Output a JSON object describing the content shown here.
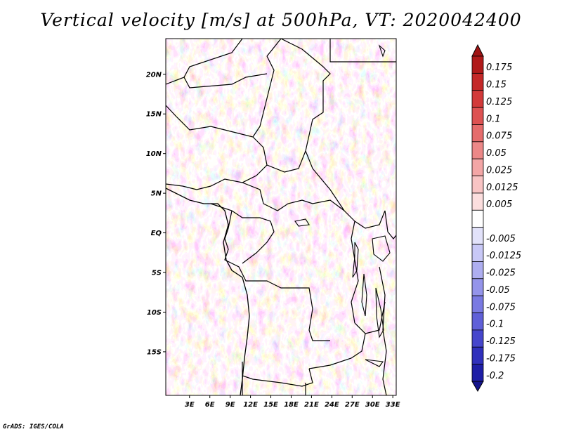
{
  "title": "Vertical velocity [m/s] at 500hPa, VT: 2020042400",
  "credit": "GrADS: IGES/COLA",
  "map": {
    "lat_range": [
      -20.5,
      24.5
    ],
    "lon_range": [
      -0.5,
      33.5
    ],
    "lat_ticks": [
      {
        "value": 20,
        "label": "20N"
      },
      {
        "value": 15,
        "label": "15N"
      },
      {
        "value": 10,
        "label": "10N"
      },
      {
        "value": 5,
        "label": "5N"
      },
      {
        "value": 0,
        "label": "EQ"
      },
      {
        "value": -5,
        "label": "5S"
      },
      {
        "value": -10,
        "label": "10S"
      },
      {
        "value": -15,
        "label": "15S"
      }
    ],
    "lon_ticks": [
      {
        "value": 3,
        "label": "3E"
      },
      {
        "value": 6,
        "label": "6E"
      },
      {
        "value": 9,
        "label": "9E"
      },
      {
        "value": 12,
        "label": "12E"
      },
      {
        "value": 15,
        "label": "15E"
      },
      {
        "value": 18,
        "label": "18E"
      },
      {
        "value": 21,
        "label": "21E"
      },
      {
        "value": 24,
        "label": "24E"
      },
      {
        "value": 27,
        "label": "27E"
      },
      {
        "value": 30,
        "label": "30E"
      },
      {
        "value": 33,
        "label": "33E"
      }
    ]
  },
  "colorbar": {
    "levels": [
      {
        "label": "0.175",
        "color": "#b01a1a"
      },
      {
        "label": "0.15",
        "color": "#c42828"
      },
      {
        "label": "0.125",
        "color": "#d23a3a"
      },
      {
        "label": "0.1",
        "color": "#dd5252"
      },
      {
        "label": "0.075",
        "color": "#e56c6c"
      },
      {
        "label": "0.05",
        "color": "#ec8888"
      },
      {
        "label": "0.025",
        "color": "#f3a6a6"
      },
      {
        "label": "0.0125",
        "color": "#f8c4c4"
      },
      {
        "label": "0.005",
        "color": "#fcdede"
      },
      {
        "label": "",
        "color": "#ffffff"
      },
      {
        "label": "-0.005",
        "color": "#e2e2fa"
      },
      {
        "label": "-0.0125",
        "color": "#c8c8f6"
      },
      {
        "label": "-0.025",
        "color": "#aeaef0"
      },
      {
        "label": "-0.05",
        "color": "#9494ea"
      },
      {
        "label": "-0.075",
        "color": "#7a7ae2"
      },
      {
        "label": "-0.1",
        "color": "#6060d8"
      },
      {
        "label": "-0.125",
        "color": "#4646cc"
      },
      {
        "label": "-0.175",
        "color": "#3030bc"
      },
      {
        "label": "-0.2",
        "color": "#1e1ea6"
      }
    ],
    "max_color": "#a01414",
    "min_color": "#14148c"
  }
}
